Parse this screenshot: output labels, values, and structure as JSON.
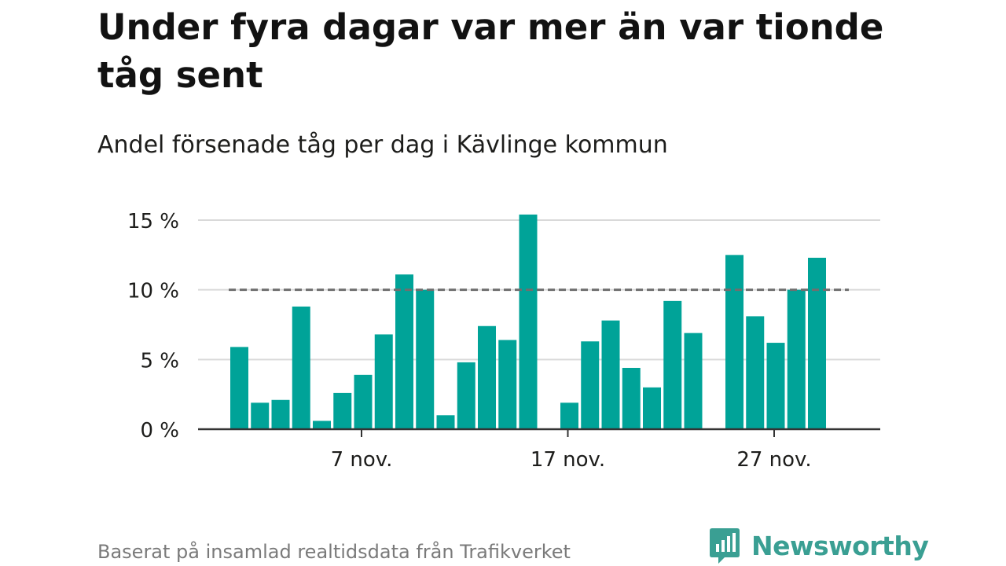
{
  "header": {
    "title": "Under fyra dagar var mer än var tionde tåg sent",
    "subtitle": "Andel försenade tåg per dag i Kävlinge kommun"
  },
  "footer": {
    "source": "Baserat på insamlad realtidsdata från Trafikverket",
    "brand": "Newsworthy"
  },
  "colors": {
    "bar": "#00a398",
    "reference_line": "#6f6f6f",
    "grid": "#d9d9d9",
    "axis": "#333333",
    "brand": "#3a9f93"
  },
  "chart_data": {
    "type": "bar",
    "x": [
      "2022-11-01",
      "2022-11-02",
      "2022-11-03",
      "2022-11-04",
      "2022-11-05",
      "2022-11-06",
      "2022-11-07",
      "2022-11-08",
      "2022-11-09",
      "2022-11-10",
      "2022-11-11",
      "2022-11-12",
      "2022-11-13",
      "2022-11-14",
      "2022-11-15",
      "2022-11-16",
      "2022-11-17",
      "2022-11-18",
      "2022-11-19",
      "2022-11-20",
      "2022-11-21",
      "2022-11-22",
      "2022-11-23",
      "2022-11-24",
      "2022-11-25",
      "2022-11-26",
      "2022-11-27",
      "2022-11-28",
      "2022-11-29",
      "2022-11-30"
    ],
    "values": [
      5.9,
      1.9,
      2.1,
      8.8,
      0.6,
      2.6,
      3.9,
      6.8,
      11.1,
      10.0,
      1.0,
      4.8,
      7.4,
      6.4,
      15.4,
      null,
      1.9,
      6.3,
      7.8,
      4.4,
      3.0,
      9.2,
      6.9,
      null,
      12.5,
      8.1,
      6.2,
      10.0,
      12.3,
      null
    ],
    "ylim": [
      0,
      15
    ],
    "y_ticks": [
      0,
      5,
      10,
      15
    ],
    "y_tick_labels": [
      "0 %",
      "5 %",
      "10 %",
      "15 %"
    ],
    "x_ticks": [
      "2022-11-07",
      "2022-11-17",
      "2022-11-27"
    ],
    "x_tick_labels": [
      "7 nov.",
      "17 nov.",
      "27 nov."
    ],
    "reference_line": 10,
    "grid": true
  }
}
